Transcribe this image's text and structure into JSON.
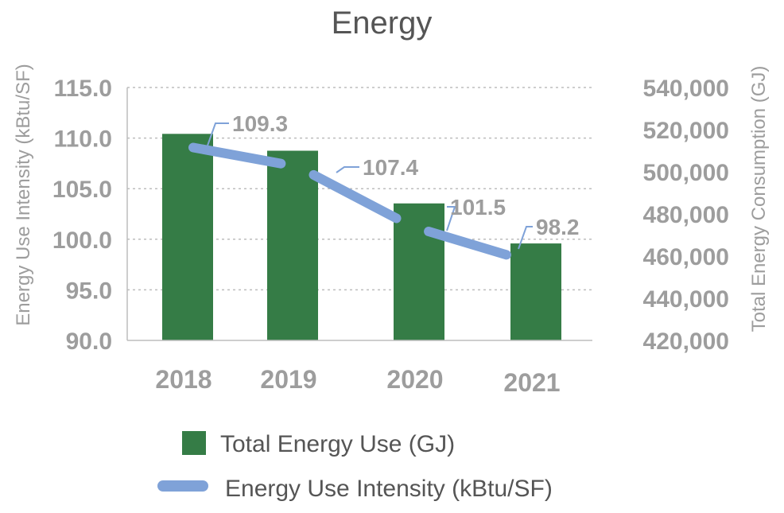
{
  "chart_data": {
    "type": "bar+line",
    "title": "Energy",
    "categories": [
      "2018",
      "2019",
      "2020",
      "2021"
    ],
    "series": [
      {
        "name": "Total Energy Use (GJ)",
        "kind": "bar",
        "axis": "right",
        "values": [
          518000,
          510000,
          485000,
          466000
        ],
        "color": "#357c46"
      },
      {
        "name": "Energy Use Intensity (kBtu/SF)",
        "kind": "line",
        "axis": "left",
        "values": [
          109.3,
          107.4,
          101.5,
          98.2
        ],
        "labels": [
          "109.3",
          "107.4",
          "101.5",
          "98.2"
        ],
        "color": "#7fa2d8"
      }
    ],
    "left_axis": {
      "label": "Energy Use Intensity (kBtu/SF)",
      "ylim": [
        90,
        115
      ],
      "ticks": [
        "90.0",
        "95.0",
        "100.0",
        "105.0",
        "110.0",
        "115.0"
      ]
    },
    "right_axis": {
      "label": "Total Energy Consumption (GJ)",
      "ylim": [
        420000,
        540000
      ],
      "ticks": [
        "420,000",
        "440,000",
        "460,000",
        "480,000",
        "500,000",
        "520,000",
        "540,000"
      ]
    },
    "grid": "dotted horizontal",
    "legend_position": "bottom"
  }
}
